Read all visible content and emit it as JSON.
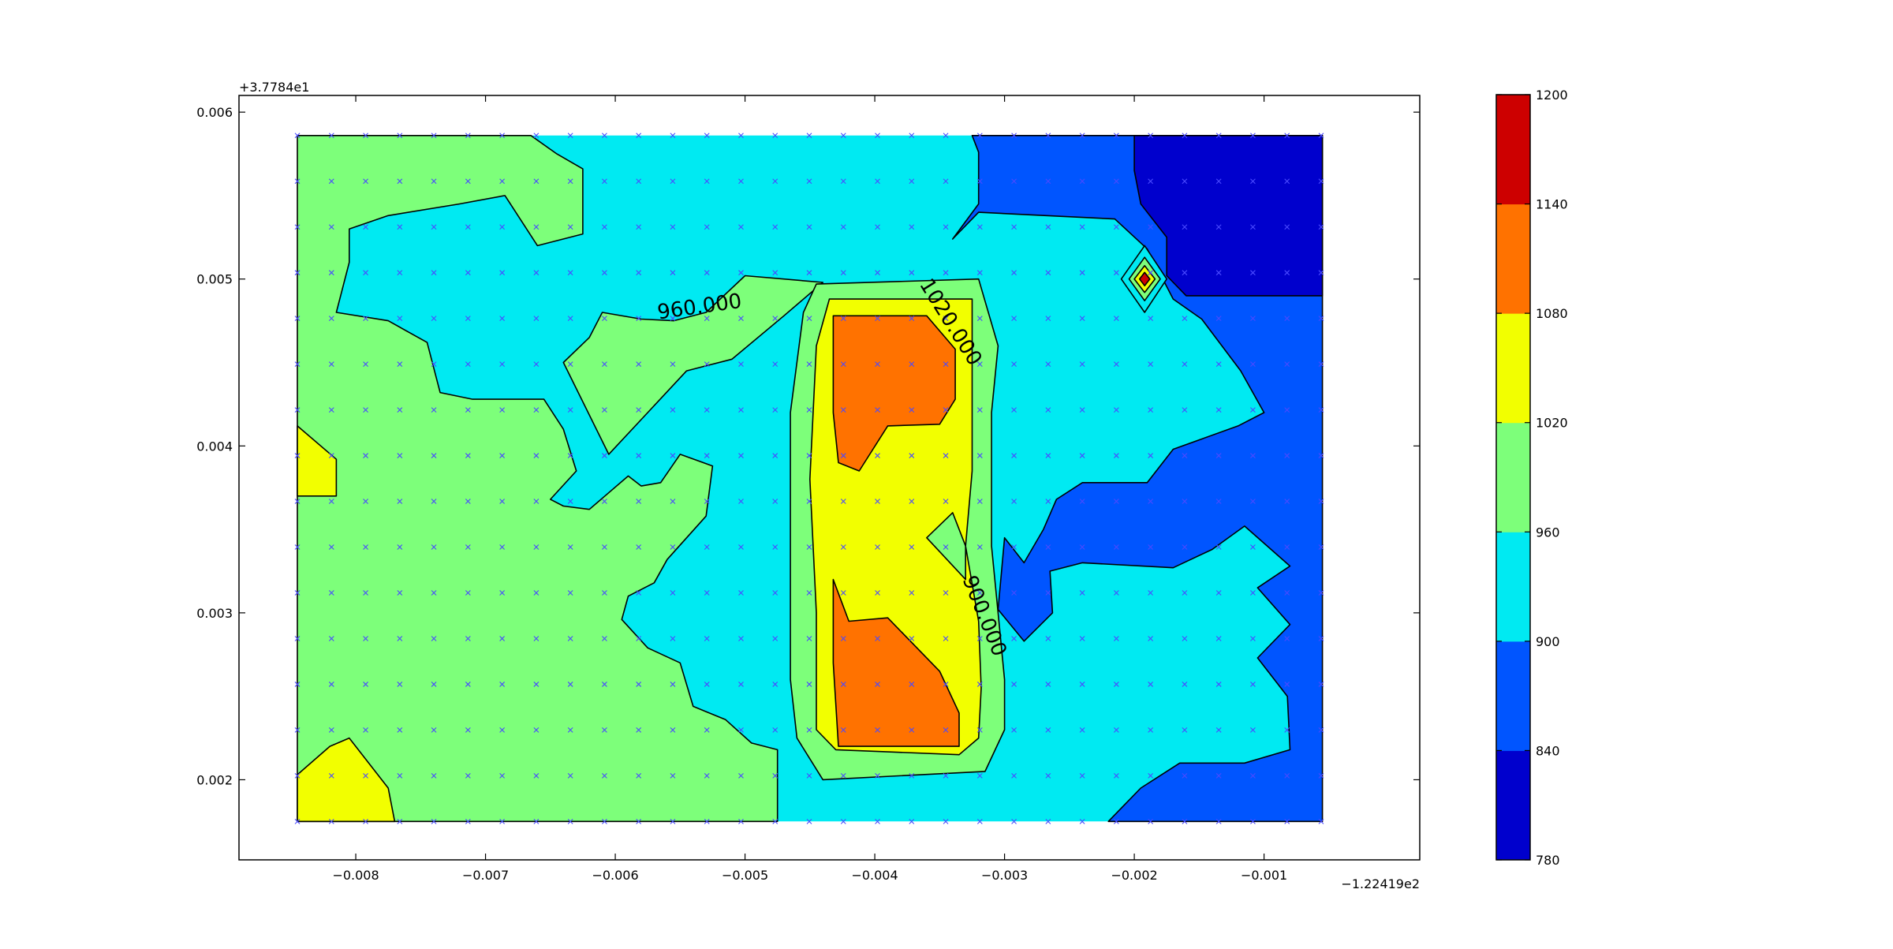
{
  "chart_data": {
    "type": "heatmap",
    "subtype": "filled-contour",
    "title": "",
    "xlabel": "",
    "ylabel": "",
    "x_offset_label": "−1.22419e2",
    "y_offset_label": "+3.7784e1",
    "xlim": [
      -0.0089,
      0.0002
    ],
    "ylim": [
      0.00152,
      0.0061
    ],
    "x_ticks": [
      -0.008,
      -0.007,
      -0.006,
      -0.005,
      -0.004,
      -0.003,
      -0.002,
      -0.001
    ],
    "x_tick_labels": [
      "−0.008",
      "−0.007",
      "−0.006",
      "−0.005",
      "−0.004",
      "−0.003",
      "−0.002",
      "−0.001"
    ],
    "y_ticks": [
      0.002,
      0.003,
      0.004,
      0.005,
      0.006
    ],
    "y_tick_labels": [
      "0.002",
      "0.003",
      "0.004",
      "0.005",
      "0.006"
    ],
    "grid": false,
    "data_extent": {
      "x": [
        -0.00845,
        -0.00055
      ],
      "y": [
        0.00175,
        0.00586
      ]
    },
    "sample_grid": {
      "marker": "x",
      "color": "#4a4aff",
      "x_start": -0.00845,
      "x_step": 0.000263,
      "x_count": 31,
      "y_start": 0.00175,
      "y_step": 0.000274,
      "y_count": 16
    },
    "colorbar": {
      "levels": [
        780,
        840,
        900,
        960,
        1020,
        1080,
        1140,
        1200
      ],
      "tick_labels": [
        "780",
        "840",
        "900",
        "960",
        "1020",
        "1080",
        "1140",
        "1200"
      ],
      "colors": [
        "#0000cd",
        "#0055ff",
        "#00eaf2",
        "#7dff7a",
        "#f2ff00",
        "#ff7200",
        "#cd0000"
      ]
    },
    "contour_labels": [
      {
        "text": "960.000",
        "x": -0.00535,
        "y": 0.00483,
        "angle": -8
      },
      {
        "text": "1020.000",
        "x": -0.00342,
        "y": 0.00474,
        "angle": 58
      },
      {
        "text": "900.000",
        "x": -0.00316,
        "y": 0.00298,
        "angle": 68
      }
    ],
    "regions": [
      {
        "level": 960,
        "color": "#00eaf2",
        "points": [
          [
            -0.00845,
            0.00586
          ],
          [
            -0.00055,
            0.00586
          ],
          [
            -0.00055,
            0.00175
          ],
          [
            -0.00845,
            0.00175
          ]
        ]
      },
      {
        "level": 900,
        "color": "#0055ff",
        "points": [
          [
            -0.00325,
            0.00586
          ],
          [
            -0.00055,
            0.00586
          ],
          [
            -0.00055,
            0.00175
          ],
          [
            -0.0022,
            0.00175
          ],
          [
            -0.00195,
            0.00195
          ],
          [
            -0.00165,
            0.0021
          ],
          [
            -0.00115,
            0.0021
          ],
          [
            -0.0008,
            0.00218
          ],
          [
            -0.00082,
            0.0025
          ],
          [
            -0.00105,
            0.00273
          ],
          [
            -0.0008,
            0.00293
          ],
          [
            -0.00105,
            0.00315
          ],
          [
            -0.0008,
            0.00328
          ],
          [
            -0.00115,
            0.00352
          ],
          [
            -0.0014,
            0.00338
          ],
          [
            -0.0017,
            0.00327
          ],
          [
            -0.0024,
            0.0033
          ],
          [
            -0.00265,
            0.00325
          ],
          [
            -0.00263,
            0.003
          ],
          [
            -0.00285,
            0.00283
          ],
          [
            -0.00305,
            0.00302
          ],
          [
            -0.003,
            0.00345
          ],
          [
            -0.00285,
            0.0033
          ],
          [
            -0.0027,
            0.0035
          ],
          [
            -0.0026,
            0.00368
          ],
          [
            -0.0024,
            0.00378
          ],
          [
            -0.0019,
            0.00378
          ],
          [
            -0.0017,
            0.00398
          ],
          [
            -0.0012,
            0.00412
          ],
          [
            -0.001,
            0.0042
          ],
          [
            -0.00118,
            0.00445
          ],
          [
            -0.00148,
            0.00476
          ],
          [
            -0.0017,
            0.00488
          ],
          [
            -0.0019,
            0.00518
          ],
          [
            -0.00215,
            0.00536
          ],
          [
            -0.0032,
            0.0054
          ],
          [
            -0.0034,
            0.00524
          ],
          [
            -0.0032,
            0.00545
          ],
          [
            -0.0032,
            0.00576
          ],
          [
            -0.00325,
            0.00586
          ]
        ]
      },
      {
        "level": 840,
        "color": "#0000cd",
        "points": [
          [
            -0.002,
            0.00586
          ],
          [
            -0.00055,
            0.00586
          ],
          [
            -0.00055,
            0.0049
          ],
          [
            -0.0016,
            0.0049
          ],
          [
            -0.00175,
            0.00502
          ],
          [
            -0.00175,
            0.00525
          ],
          [
            -0.00195,
            0.00545
          ],
          [
            -0.002,
            0.00565
          ]
        ]
      },
      {
        "level": 1020,
        "color": "#7dff7a",
        "points": [
          [
            -0.00845,
            0.00586
          ],
          [
            -0.00665,
            0.00586
          ],
          [
            -0.00645,
            0.00575
          ],
          [
            -0.00625,
            0.00566
          ],
          [
            -0.00625,
            0.00527
          ],
          [
            -0.0066,
            0.0052
          ],
          [
            -0.00685,
            0.0055
          ],
          [
            -0.0072,
            0.00545
          ],
          [
            -0.00775,
            0.00538
          ],
          [
            -0.00805,
            0.0053
          ],
          [
            -0.00805,
            0.0051
          ],
          [
            -0.00815,
            0.0048
          ],
          [
            -0.00775,
            0.00475
          ],
          [
            -0.00745,
            0.00462
          ],
          [
            -0.00735,
            0.00432
          ],
          [
            -0.0071,
            0.00428
          ],
          [
            -0.00655,
            0.00428
          ],
          [
            -0.0064,
            0.0041
          ],
          [
            -0.0063,
            0.00385
          ],
          [
            -0.0065,
            0.00368
          ],
          [
            -0.0064,
            0.00364
          ],
          [
            -0.0062,
            0.00362
          ],
          [
            -0.0059,
            0.00382
          ],
          [
            -0.0058,
            0.00376
          ],
          [
            -0.00565,
            0.00378
          ],
          [
            -0.0055,
            0.00395
          ],
          [
            -0.00525,
            0.00388
          ],
          [
            -0.0053,
            0.00358
          ],
          [
            -0.0056,
            0.00332
          ],
          [
            -0.0057,
            0.00318
          ],
          [
            -0.0059,
            0.0031
          ],
          [
            -0.00595,
            0.00296
          ],
          [
            -0.00575,
            0.00279
          ],
          [
            -0.0055,
            0.0027
          ],
          [
            -0.0054,
            0.00244
          ],
          [
            -0.00515,
            0.00236
          ],
          [
            -0.00495,
            0.00222
          ],
          [
            -0.00475,
            0.00218
          ],
          [
            -0.00475,
            0.00175
          ],
          [
            -0.00845,
            0.00175
          ]
        ]
      },
      {
        "level": 1020,
        "color": "#7dff7a",
        "points": [
          [
            -0.0061,
            0.0048
          ],
          [
            -0.0058,
            0.00476
          ],
          [
            -0.00555,
            0.00475
          ],
          [
            -0.0053,
            0.0048
          ],
          [
            -0.005,
            0.00502
          ],
          [
            -0.0044,
            0.00498
          ],
          [
            -0.0047,
            0.00478
          ],
          [
            -0.0051,
            0.00452
          ],
          [
            -0.00545,
            0.00445
          ],
          [
            -0.00575,
            0.0042
          ],
          [
            -0.00605,
            0.00395
          ],
          [
            -0.0064,
            0.0045
          ],
          [
            -0.0062,
            0.00465
          ]
        ]
      },
      {
        "level": 1020,
        "color": "#7dff7a",
        "points": [
          [
            -0.00445,
            0.00497
          ],
          [
            -0.0032,
            0.005
          ],
          [
            -0.00305,
            0.0046
          ],
          [
            -0.0031,
            0.0042
          ],
          [
            -0.0031,
            0.0038
          ],
          [
            -0.0031,
            0.0034
          ],
          [
            -0.00305,
            0.003
          ],
          [
            -0.003,
            0.0026
          ],
          [
            -0.003,
            0.0023
          ],
          [
            -0.00315,
            0.00205
          ],
          [
            -0.0044,
            0.002
          ],
          [
            -0.0046,
            0.00225
          ],
          [
            -0.00465,
            0.0026
          ],
          [
            -0.00465,
            0.0034
          ],
          [
            -0.00465,
            0.0042
          ],
          [
            -0.00455,
            0.0048
          ]
        ]
      },
      {
        "level": 1080,
        "color": "#f2ff00",
        "points": [
          [
            -0.00435,
            0.00488
          ],
          [
            -0.00325,
            0.00488
          ],
          [
            -0.00325,
            0.0044
          ],
          [
            -0.00325,
            0.00385
          ],
          [
            -0.0033,
            0.0034
          ],
          [
            -0.0032,
            0.00295
          ],
          [
            -0.00318,
            0.00255
          ],
          [
            -0.0032,
            0.00225
          ],
          [
            -0.00335,
            0.00215
          ],
          [
            -0.0043,
            0.00218
          ],
          [
            -0.00445,
            0.0023
          ],
          [
            -0.00445,
            0.003
          ],
          [
            -0.0045,
            0.0038
          ],
          [
            -0.00445,
            0.0046
          ]
        ]
      },
      {
        "level": 1080,
        "color": "#7dff7a",
        "points": [
          [
            -0.0036,
            0.00345
          ],
          [
            -0.0034,
            0.0036
          ],
          [
            -0.0033,
            0.0034
          ],
          [
            -0.0033,
            0.0032
          ]
        ]
      },
      {
        "level": 1140,
        "color": "#ff7200",
        "points": [
          [
            -0.00432,
            0.00478
          ],
          [
            -0.0036,
            0.00478
          ],
          [
            -0.00338,
            0.00458
          ],
          [
            -0.00338,
            0.00428
          ],
          [
            -0.0035,
            0.00413
          ],
          [
            -0.0039,
            0.00412
          ],
          [
            -0.00412,
            0.00385
          ],
          [
            -0.00428,
            0.0039
          ],
          [
            -0.00432,
            0.0042
          ]
        ]
      },
      {
        "level": 1140,
        "color": "#ff7200",
        "points": [
          [
            -0.00432,
            0.0032
          ],
          [
            -0.0042,
            0.00295
          ],
          [
            -0.0039,
            0.00297
          ],
          [
            -0.0035,
            0.00265
          ],
          [
            -0.00335,
            0.0024
          ],
          [
            -0.00335,
            0.0022
          ],
          [
            -0.00428,
            0.0022
          ],
          [
            -0.00432,
            0.0027
          ]
        ]
      },
      {
        "level": 1020,
        "color": "#f2ff00",
        "points": [
          [
            -0.00845,
            0.00412
          ],
          [
            -0.00815,
            0.00392
          ],
          [
            -0.00815,
            0.0037
          ],
          [
            -0.00845,
            0.0037
          ]
        ]
      },
      {
        "level": 1020,
        "color": "#f2ff00",
        "points": [
          [
            -0.00845,
            0.00203
          ],
          [
            -0.0082,
            0.0022
          ],
          [
            -0.00805,
            0.00225
          ],
          [
            -0.00775,
            0.00195
          ],
          [
            -0.0077,
            0.00175
          ],
          [
            -0.00845,
            0.00175
          ]
        ]
      },
      {
        "level": 900,
        "color": "#00eaf2",
        "points": [
          [
            -0.00192,
            0.0052
          ],
          [
            -0.00175,
            0.005
          ],
          [
            -0.00192,
            0.0048
          ],
          [
            -0.0021,
            0.005
          ]
        ]
      },
      {
        "level": 960,
        "color": "#7dff7a",
        "points": [
          [
            -0.00192,
            0.00513
          ],
          [
            -0.0018,
            0.005
          ],
          [
            -0.00192,
            0.00487
          ],
          [
            -0.00204,
            0.005
          ]
        ]
      },
      {
        "level": 1020,
        "color": "#f2ff00",
        "points": [
          [
            -0.00192,
            0.00508
          ],
          [
            -0.00184,
            0.005
          ],
          [
            -0.00192,
            0.00492
          ],
          [
            -0.002,
            0.005
          ]
        ]
      },
      {
        "level": 1140,
        "color": "#cd0000",
        "points": [
          [
            -0.00192,
            0.00504
          ],
          [
            -0.00188,
            0.005
          ],
          [
            -0.00192,
            0.00496
          ],
          [
            -0.00196,
            0.005
          ]
        ]
      }
    ]
  }
}
